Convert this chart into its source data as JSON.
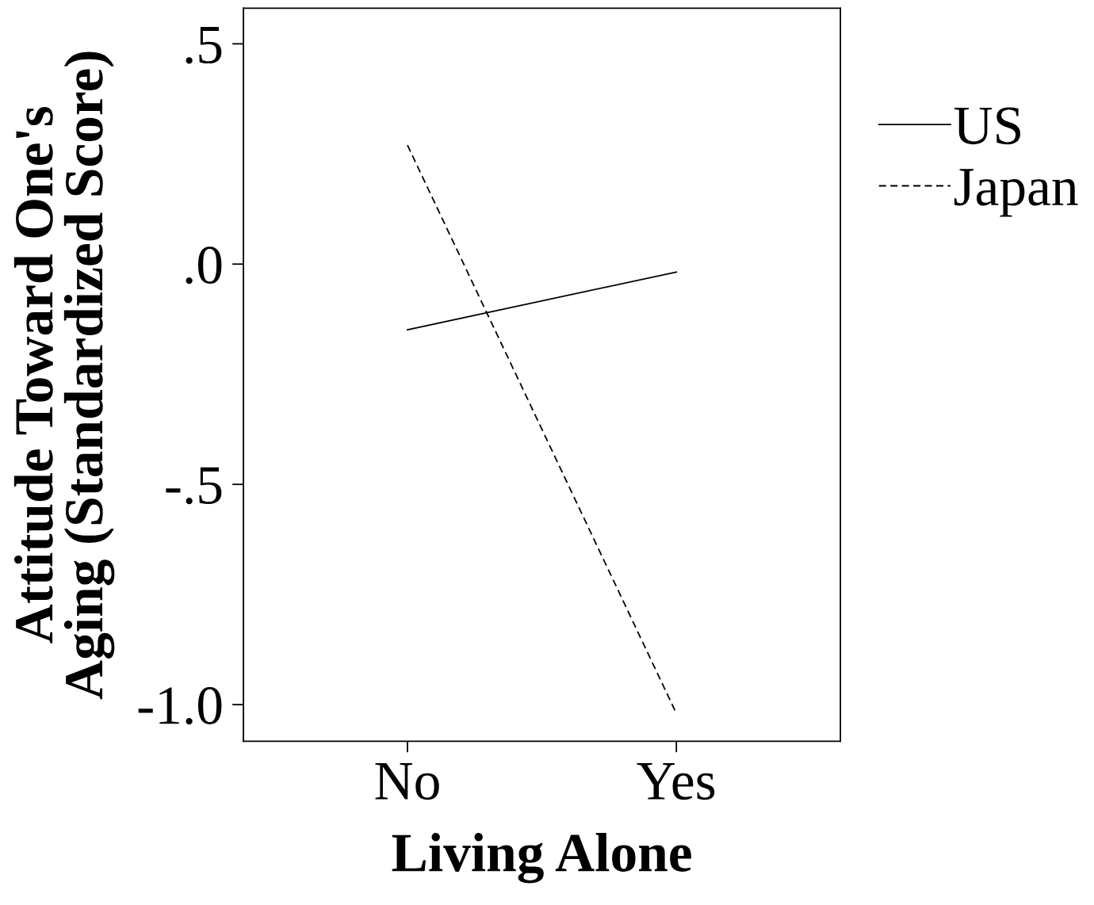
{
  "chart_data": {
    "type": "line",
    "xlabel": "Living Alone",
    "ylabel": "Attitude Toward One's\nAging (Standardized Score)",
    "categories": [
      "No",
      "Yes"
    ],
    "series": [
      {
        "name": "US",
        "color": "#000000",
        "values": [
          -0.149,
          -0.018
        ],
        "line_style": "solid"
      },
      {
        "name": "Japan",
        "color": "#000000",
        "values": [
          0.27,
          -1.02
        ],
        "line_style": "dashed"
      }
    ],
    "ylim": [
      -1.083,
      0.581
    ],
    "yticks": [
      {
        "value": 0.5,
        "label": ".5"
      },
      {
        "value": 0.0,
        "label": ".0"
      },
      {
        "value": -0.5,
        "label": "-.5"
      },
      {
        "value": -1.0,
        "label": "-1.0"
      }
    ],
    "grid": false,
    "legend": "top right",
    "marker": "none"
  }
}
